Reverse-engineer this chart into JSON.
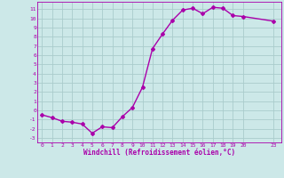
{
  "x": [
    0,
    1,
    2,
    3,
    4,
    5,
    6,
    7,
    8,
    9,
    10,
    11,
    12,
    13,
    14,
    15,
    16,
    17,
    18,
    19,
    20,
    23
  ],
  "y": [
    -0.5,
    -0.8,
    -1.2,
    -1.3,
    -1.5,
    -2.5,
    -1.8,
    -1.9,
    -0.7,
    0.3,
    2.5,
    6.7,
    8.3,
    9.8,
    10.9,
    11.1,
    10.5,
    11.2,
    11.1,
    10.3,
    10.2,
    9.7
  ],
  "line_color": "#aa00aa",
  "marker": "D",
  "marker_size": 2.0,
  "bg_color": "#cce8e8",
  "grid_color": "#aacccc",
  "axis_label_color": "#aa00aa",
  "tick_color": "#aa00aa",
  "xlabel": "Windchill (Refroidissement éolien,°C)",
  "xlim": [
    -0.5,
    23.8
  ],
  "ylim": [
    -3.5,
    11.8
  ],
  "yticks": [
    -3,
    -2,
    -1,
    0,
    1,
    2,
    3,
    4,
    5,
    6,
    7,
    8,
    9,
    10,
    11
  ],
  "xticks": [
    0,
    1,
    2,
    3,
    4,
    5,
    6,
    7,
    8,
    9,
    10,
    11,
    12,
    13,
    14,
    15,
    16,
    17,
    18,
    19,
    20,
    23
  ],
  "spine_color": "#aa00aa",
  "line_width": 1.0
}
